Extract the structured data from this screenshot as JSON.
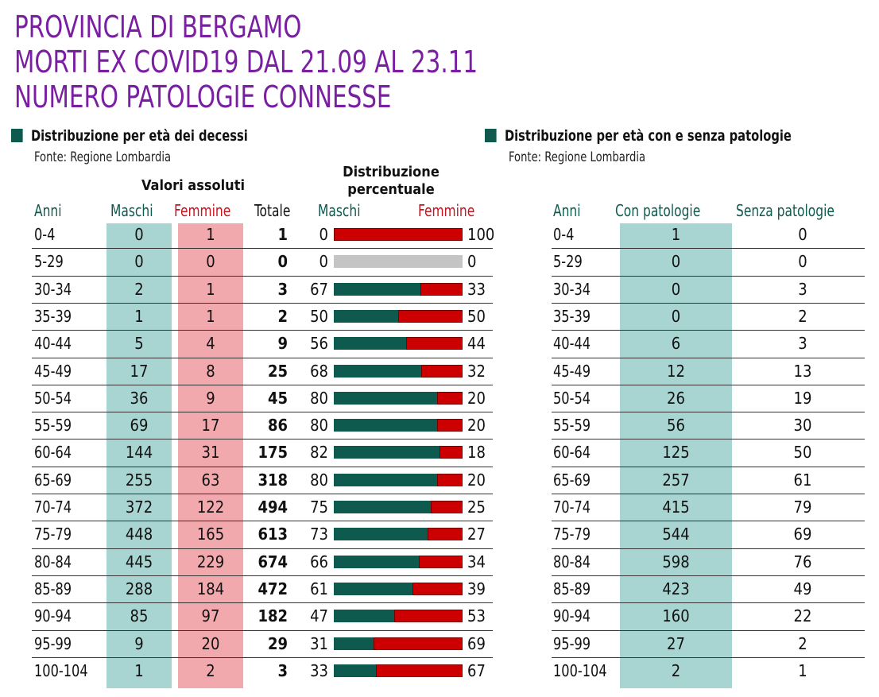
{
  "title": [
    "PROVINCIA DI BERGAMO",
    "MORTI EX COVID19 DAL 21.09 AL 23.11",
    "NUMERO PATOLOGIE CONNESSE"
  ],
  "left_section": {
    "heading": "Distribuzione per età dei decessi",
    "source": "Fonte: Regione Lombardia",
    "group_abs": "Valori assoluti",
    "group_pct_line1": "Distribuzione",
    "group_pct_line2": "percentuale",
    "col_anni": "Anni",
    "col_maschi": "Maschi",
    "col_femmine": "Femmine",
    "col_totale": "Totale",
    "col_pct_maschi": "Maschi",
    "col_pct_femmine": "Femmine"
  },
  "right_section": {
    "heading": "Distribuzione per età con e senza patologie",
    "source": "Fonte: Regione Lombardia",
    "col_anni": "Anni",
    "col_con": "Con patologie",
    "col_senza": "Senza patologie"
  },
  "colors": {
    "title": "#7a1fa2",
    "male": "#0e5a4f",
    "female": "#cc0000",
    "male_band": "#a8d5d2",
    "female_band": "#f2a9ad",
    "empty": "#c4c4c4"
  },
  "chart_data": [
    {
      "type": "table",
      "categories": [
        "0-4",
        "5-29",
        "30-34",
        "35-39",
        "40-44",
        "45-49",
        "50-54",
        "55-59",
        "60-64",
        "65-69",
        "70-74",
        "75-79",
        "80-84",
        "85-89",
        "90-94",
        "95-99",
        "100-104"
      ],
      "series": [
        {
          "name": "Maschi",
          "values": [
            0,
            0,
            2,
            1,
            5,
            17,
            36,
            69,
            144,
            255,
            372,
            448,
            445,
            288,
            85,
            9,
            1
          ]
        },
        {
          "name": "Femmine",
          "values": [
            1,
            0,
            1,
            1,
            4,
            8,
            9,
            17,
            31,
            63,
            122,
            165,
            229,
            184,
            97,
            20,
            2
          ]
        },
        {
          "name": "Totale",
          "values": [
            1,
            0,
            3,
            2,
            9,
            25,
            45,
            86,
            175,
            318,
            494,
            613,
            674,
            472,
            182,
            29,
            3
          ]
        }
      ]
    },
    {
      "type": "bar",
      "categories": [
        "0-4",
        "5-29",
        "30-34",
        "35-39",
        "40-44",
        "45-49",
        "50-54",
        "55-59",
        "60-64",
        "65-69",
        "70-74",
        "75-79",
        "80-84",
        "85-89",
        "90-94",
        "95-99",
        "100-104"
      ],
      "series": [
        {
          "name": "Maschi",
          "values": [
            0,
            0,
            67,
            50,
            56,
            68,
            80,
            80,
            82,
            80,
            75,
            73,
            66,
            61,
            47,
            31,
            33
          ]
        },
        {
          "name": "Femmine",
          "values": [
            100,
            0,
            33,
            50,
            44,
            32,
            20,
            20,
            18,
            20,
            25,
            27,
            34,
            39,
            53,
            69,
            67
          ]
        }
      ]
    },
    {
      "type": "table",
      "categories": [
        "0-4",
        "5-29",
        "30-34",
        "35-39",
        "40-44",
        "45-49",
        "50-54",
        "55-59",
        "60-64",
        "65-69",
        "70-74",
        "75-79",
        "80-84",
        "85-89",
        "90-94",
        "95-99",
        "100-104"
      ],
      "series": [
        {
          "name": "Con patologie",
          "values": [
            1,
            0,
            0,
            0,
            6,
            12,
            26,
            56,
            125,
            257,
            415,
            544,
            598,
            423,
            160,
            27,
            2
          ]
        },
        {
          "name": "Senza patologie",
          "values": [
            0,
            0,
            3,
            2,
            3,
            13,
            19,
            30,
            50,
            61,
            79,
            69,
            76,
            49,
            22,
            2,
            1
          ]
        }
      ]
    }
  ]
}
